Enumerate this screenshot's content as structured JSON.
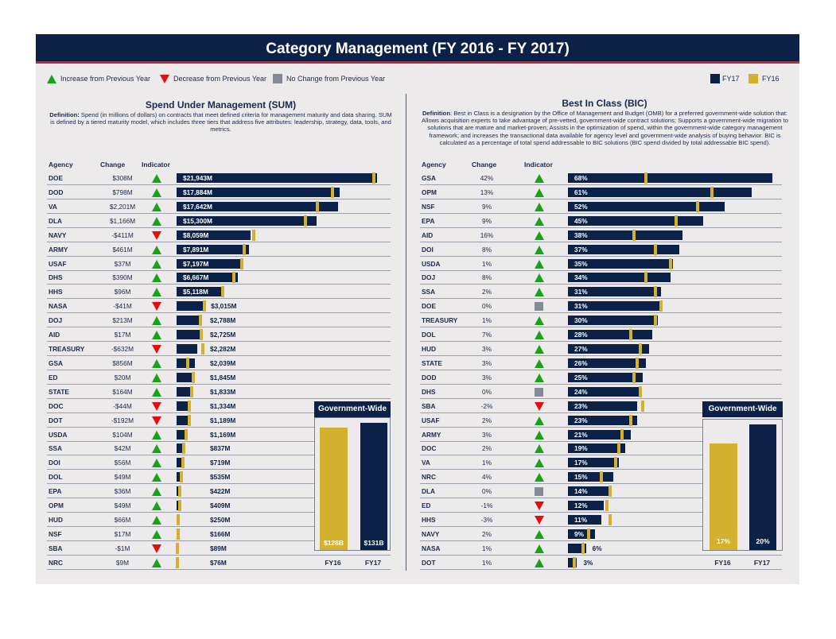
{
  "title": "Category Management (FY 2016 - FY 2017)",
  "legend": {
    "increase": "Increase from Previous Year",
    "decrease": "Decrease from Previous Year",
    "no_change": "No Change from Previous Year",
    "fy17": "FY17",
    "fy16": "FY16"
  },
  "colors": {
    "fy17": "#0b2147",
    "fy16": "#d4b02f",
    "increase": "#1aa31a",
    "decrease": "#e11010",
    "no_change": "#858b96"
  },
  "columns": {
    "agency": "Agency",
    "change": "Change",
    "indicator": "Indicator"
  },
  "sum": {
    "title": "Spend Under Management (SUM)",
    "definition_label": "Definition:",
    "definition_text": " Spend (in millions of dollars) on contracts that meet defined criteria for management maturity and data sharing. SUM is defined by a tiered maturity model, which includes three tiers that address five attributes: leadership, strategy, data, tools, and metrics.",
    "government_wide": {
      "header": "Government-Wide",
      "fy16_label": "$126B",
      "fy17_label": "$131B",
      "fy16_value": 126,
      "fy17_value": 131,
      "cat16": "FY16",
      "cat17": "FY17"
    }
  },
  "bic": {
    "title": "Best In Class (BIC)",
    "definition_label": "Definition",
    "definition_text": ": Best in Class is a designation by the Office of Management and Budget (OMB) for a preferred government-wide solution that: Allows acquisition experts to take advantage of pre-vetted, government-wide contract solutions; Supports a government-wide migration to solutions that are mature and market-proven; Assists in the optimization of spend, within the government-wide category management framework; and increases the transactional data available for agency level and government-wide analysis of buying behavior. BIC is calculated as a percentage of total spend addressable to BIC solutions (BIC spend divided by total addressable BIC spend).",
    "government_wide": {
      "header": "Government-Wide",
      "fy16_label": "17%",
      "fy17_label": "20%",
      "fy16_value": 17,
      "fy17_value": 20,
      "cat16": "FY16",
      "cat17": "FY17"
    }
  },
  "chart_data": [
    {
      "type": "bar",
      "title": "Spend Under Management (SUM)",
      "orientation": "horizontal",
      "unit": "millions of dollars",
      "rows": [
        {
          "agency": "DOE",
          "change": "$308M",
          "indicator": "increase",
          "fy17": 21943,
          "fy16": 21635,
          "label": "$21,943M"
        },
        {
          "agency": "DOD",
          "change": "$798M",
          "indicator": "increase",
          "fy17": 17884,
          "fy16": 17086,
          "label": "$17,884M"
        },
        {
          "agency": "VA",
          "change": "$2,201M",
          "indicator": "increase",
          "fy17": 17642,
          "fy16": 15441,
          "label": "$17,642M"
        },
        {
          "agency": "DLA",
          "change": "$1,166M",
          "indicator": "increase",
          "fy17": 15300,
          "fy16": 14134,
          "label": "$15,300M"
        },
        {
          "agency": "NAVY",
          "change": "-$411M",
          "indicator": "decrease",
          "fy17": 8059,
          "fy16": 8470,
          "label": "$8,059M"
        },
        {
          "agency": "ARMY",
          "change": "$461M",
          "indicator": "increase",
          "fy17": 7891,
          "fy16": 7430,
          "label": "$7,891M"
        },
        {
          "agency": "USAF",
          "change": "$37M",
          "indicator": "increase",
          "fy17": 7197,
          "fy16": 7160,
          "label": "$7,197M"
        },
        {
          "agency": "DHS",
          "change": "$390M",
          "indicator": "increase",
          "fy17": 6667,
          "fy16": 6277,
          "label": "$6,667M"
        },
        {
          "agency": "HHS",
          "change": "$96M",
          "indicator": "increase",
          "fy17": 5118,
          "fy16": 5022,
          "label": "$5,118M"
        },
        {
          "agency": "NASA",
          "change": "-$41M",
          "indicator": "decrease",
          "fy17": 3015,
          "fy16": 3056,
          "label": "$3,015M"
        },
        {
          "agency": "DOJ",
          "change": "$213M",
          "indicator": "increase",
          "fy17": 2788,
          "fy16": 2575,
          "label": "$2,788M"
        },
        {
          "agency": "AID",
          "change": "$17M",
          "indicator": "increase",
          "fy17": 2725,
          "fy16": 2708,
          "label": "$2,725M"
        },
        {
          "agency": "TREASURY",
          "change": "-$632M",
          "indicator": "decrease",
          "fy17": 2282,
          "fy16": 2914,
          "label": "$2,282M"
        },
        {
          "agency": "GSA",
          "change": "$856M",
          "indicator": "increase",
          "fy17": 2039,
          "fy16": 1183,
          "label": "$2,039M"
        },
        {
          "agency": "ED",
          "change": "$20M",
          "indicator": "increase",
          "fy17": 1845,
          "fy16": 1825,
          "label": "$1,845M"
        },
        {
          "agency": "STATE",
          "change": "$164M",
          "indicator": "increase",
          "fy17": 1833,
          "fy16": 1669,
          "label": "$1,833M"
        },
        {
          "agency": "DOC",
          "change": "-$44M",
          "indicator": "decrease",
          "fy17": 1334,
          "fy16": 1378,
          "label": "$1,334M"
        },
        {
          "agency": "DOT",
          "change": "-$192M",
          "indicator": "decrease",
          "fy17": 1189,
          "fy16": 1381,
          "label": "$1,189M"
        },
        {
          "agency": "USDA",
          "change": "$104M",
          "indicator": "increase",
          "fy17": 1169,
          "fy16": 1065,
          "label": "$1,169M"
        },
        {
          "agency": "SSA",
          "change": "$42M",
          "indicator": "increase",
          "fy17": 837,
          "fy16": 795,
          "label": "$837M"
        },
        {
          "agency": "DOI",
          "change": "$56M",
          "indicator": "increase",
          "fy17": 719,
          "fy16": 663,
          "label": "$719M"
        },
        {
          "agency": "DOL",
          "change": "$49M",
          "indicator": "increase",
          "fy17": 535,
          "fy16": 486,
          "label": "$535M"
        },
        {
          "agency": "EPA",
          "change": "$36M",
          "indicator": "increase",
          "fy17": 422,
          "fy16": 386,
          "label": "$422M"
        },
        {
          "agency": "OPM",
          "change": "$49M",
          "indicator": "increase",
          "fy17": 409,
          "fy16": 360,
          "label": "$409M"
        },
        {
          "agency": "HUD",
          "change": "$66M",
          "indicator": "increase",
          "fy17": 250,
          "fy16": 184,
          "label": "$250M"
        },
        {
          "agency": "NSF",
          "change": "$17M",
          "indicator": "increase",
          "fy17": 166,
          "fy16": 149,
          "label": "$166M"
        },
        {
          "agency": "SBA",
          "change": "-$1M",
          "indicator": "decrease",
          "fy17": 89,
          "fy16": 90,
          "label": "$89M"
        },
        {
          "agency": "NRC",
          "change": "$9M",
          "indicator": "increase",
          "fy17": 76,
          "fy16": 67,
          "label": "$76M"
        }
      ]
    },
    {
      "type": "bar",
      "title": "Best In Class (BIC)",
      "orientation": "horizontal",
      "unit": "percent",
      "rows": [
        {
          "agency": "GSA",
          "change": "42%",
          "indicator": "increase",
          "fy17": 68,
          "fy16": 26,
          "label": "68%"
        },
        {
          "agency": "OPM",
          "change": "13%",
          "indicator": "increase",
          "fy17": 61,
          "fy16": 48,
          "label": "61%"
        },
        {
          "agency": "NSF",
          "change": "9%",
          "indicator": "increase",
          "fy17": 52,
          "fy16": 43,
          "label": "52%"
        },
        {
          "agency": "EPA",
          "change": "9%",
          "indicator": "increase",
          "fy17": 45,
          "fy16": 36,
          "label": "45%"
        },
        {
          "agency": "AID",
          "change": "16%",
          "indicator": "increase",
          "fy17": 38,
          "fy16": 22,
          "label": "38%"
        },
        {
          "agency": "DOI",
          "change": "8%",
          "indicator": "increase",
          "fy17": 37,
          "fy16": 29,
          "label": "37%"
        },
        {
          "agency": "USDA",
          "change": "1%",
          "indicator": "increase",
          "fy17": 35,
          "fy16": 34,
          "label": "35%"
        },
        {
          "agency": "DOJ",
          "change": "8%",
          "indicator": "increase",
          "fy17": 34,
          "fy16": 26,
          "label": "34%"
        },
        {
          "agency": "SSA",
          "change": "2%",
          "indicator": "increase",
          "fy17": 31,
          "fy16": 29,
          "label": "31%"
        },
        {
          "agency": "DOE",
          "change": "0%",
          "indicator": "no_change",
          "fy17": 31,
          "fy16": 31,
          "label": "31%"
        },
        {
          "agency": "TREASURY",
          "change": "1%",
          "indicator": "increase",
          "fy17": 30,
          "fy16": 29,
          "label": "30%"
        },
        {
          "agency": "DOL",
          "change": "7%",
          "indicator": "increase",
          "fy17": 28,
          "fy16": 21,
          "label": "28%"
        },
        {
          "agency": "HUD",
          "change": "3%",
          "indicator": "increase",
          "fy17": 27,
          "fy16": 24,
          "label": "27%"
        },
        {
          "agency": "STATE",
          "change": "3%",
          "indicator": "increase",
          "fy17": 26,
          "fy16": 23,
          "label": "26%"
        },
        {
          "agency": "DOD",
          "change": "3%",
          "indicator": "increase",
          "fy17": 25,
          "fy16": 22,
          "label": "25%"
        },
        {
          "agency": "DHS",
          "change": "0%",
          "indicator": "no_change",
          "fy17": 24,
          "fy16": 24,
          "label": "24%"
        },
        {
          "agency": "SBA",
          "change": "-2%",
          "indicator": "decrease",
          "fy17": 23,
          "fy16": 25,
          "label": "23%"
        },
        {
          "agency": "USAF",
          "change": "2%",
          "indicator": "increase",
          "fy17": 23,
          "fy16": 21,
          "label": "23%"
        },
        {
          "agency": "ARMY",
          "change": "3%",
          "indicator": "increase",
          "fy17": 21,
          "fy16": 18,
          "label": "21%"
        },
        {
          "agency": "DOC",
          "change": "2%",
          "indicator": "increase",
          "fy17": 19,
          "fy16": 17,
          "label": "19%"
        },
        {
          "agency": "VA",
          "change": "1%",
          "indicator": "increase",
          "fy17": 17,
          "fy16": 16,
          "label": "17%"
        },
        {
          "agency": "NRC",
          "change": "4%",
          "indicator": "increase",
          "fy17": 15,
          "fy16": 11,
          "label": "15%"
        },
        {
          "agency": "DLA",
          "change": "0%",
          "indicator": "no_change",
          "fy17": 14,
          "fy16": 14,
          "label": "14%"
        },
        {
          "agency": "ED",
          "change": "-1%",
          "indicator": "decrease",
          "fy17": 12,
          "fy16": 13,
          "label": "12%"
        },
        {
          "agency": "HHS",
          "change": "-3%",
          "indicator": "decrease",
          "fy17": 11,
          "fy16": 14,
          "label": "11%"
        },
        {
          "agency": "NAVY",
          "change": "2%",
          "indicator": "increase",
          "fy17": 9,
          "fy16": 7,
          "label": "9%"
        },
        {
          "agency": "NASA",
          "change": "1%",
          "indicator": "increase",
          "fy17": 6,
          "fy16": 5,
          "label": "6%"
        },
        {
          "agency": "DOT",
          "change": "1%",
          "indicator": "increase",
          "fy17": 3,
          "fy16": 2,
          "label": "3%"
        }
      ]
    }
  ]
}
